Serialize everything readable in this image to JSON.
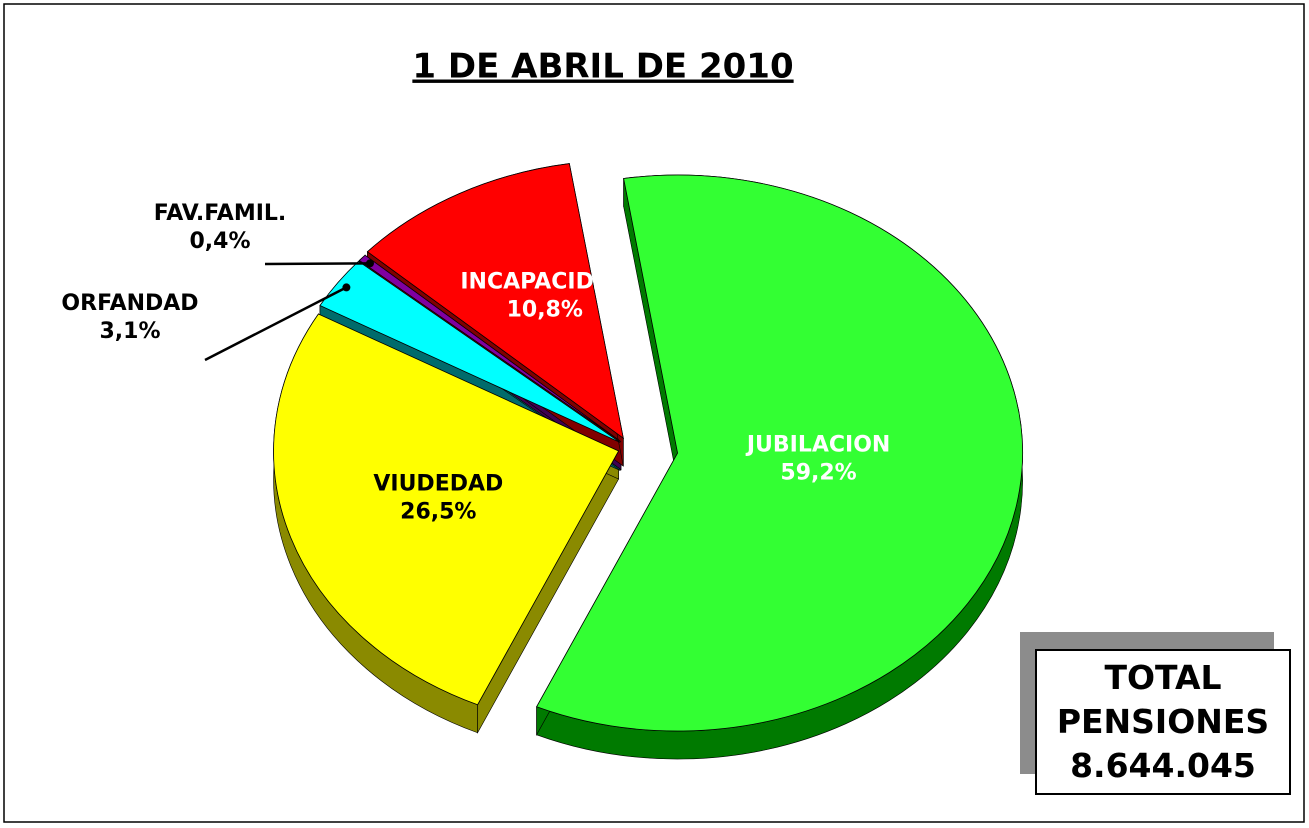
{
  "chart_data": {
    "type": "pie",
    "title": "1 DE ABRIL DE 2010",
    "categories": [
      "JUBILACION",
      "VIUDEDAD",
      "ORFANDAD",
      "FAV.FAMIL.",
      "INCAPACIDAD"
    ],
    "values": [
      59.2,
      26.5,
      3.1,
      0.4,
      10.8
    ],
    "value_labels": [
      "59,2%",
      "26,5%",
      "3,1%",
      "0,4%",
      "10,8%"
    ],
    "colors": [
      "#33ff33",
      "#ffff00",
      "#00ffff",
      "#8000a0",
      "#ff0000"
    ],
    "side_colors": [
      "#007a00",
      "#8a8a00",
      "#006b6b",
      "#400050",
      "#800000"
    ],
    "total_label": "TOTAL PENSIONES",
    "total_value": "8.644.045"
  }
}
